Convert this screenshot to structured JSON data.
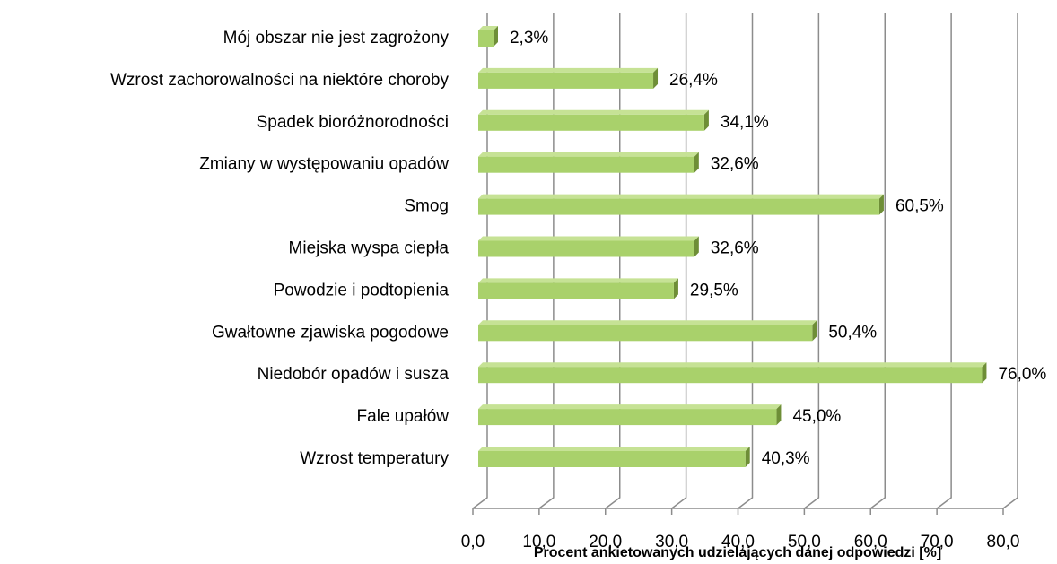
{
  "chart_data": {
    "type": "bar",
    "orientation": "horizontal",
    "x_label": "Procent ankietowanych udzielających danej odpowiedzi [%]",
    "categories": [
      "Mój obszar nie jest zagrożony",
      "Wzrost zachorowalności na niektóre choroby",
      "Spadek bioróżnorodności",
      "Zmiany w występowaniu opadów",
      "Smog",
      "Miejska wyspa ciepła",
      "Powodzie i podtopienia",
      "Gwałtowne zjawiska pogodowe",
      "Niedobór opadów i susza",
      "Fale upałów",
      "Wzrost temperatury"
    ],
    "values": [
      2.3,
      26.4,
      34.1,
      32.6,
      60.5,
      32.6,
      29.5,
      50.4,
      76.0,
      45.0,
      40.3
    ],
    "value_labels": [
      "2,3%",
      "26,4%",
      "34,1%",
      "32,6%",
      "60,5%",
      "32,6%",
      "29,5%",
      "50,4%",
      "76,0%",
      "45,0%",
      "40,3%"
    ],
    "color": "#a9d16b",
    "xlim": [
      0,
      80
    ],
    "xticks": [
      {
        "value": 0,
        "label": "0,0"
      },
      {
        "value": 10,
        "label": "10,0"
      },
      {
        "value": 20,
        "label": "20,0"
      },
      {
        "value": 30,
        "label": "30,0"
      },
      {
        "value": 40,
        "label": "40,0"
      },
      {
        "value": 50,
        "label": "50,0"
      },
      {
        "value": 60,
        "label": "60,0"
      },
      {
        "value": 70,
        "label": "70,0"
      },
      {
        "value": 80,
        "label": "80,0"
      }
    ],
    "grid": true
  }
}
